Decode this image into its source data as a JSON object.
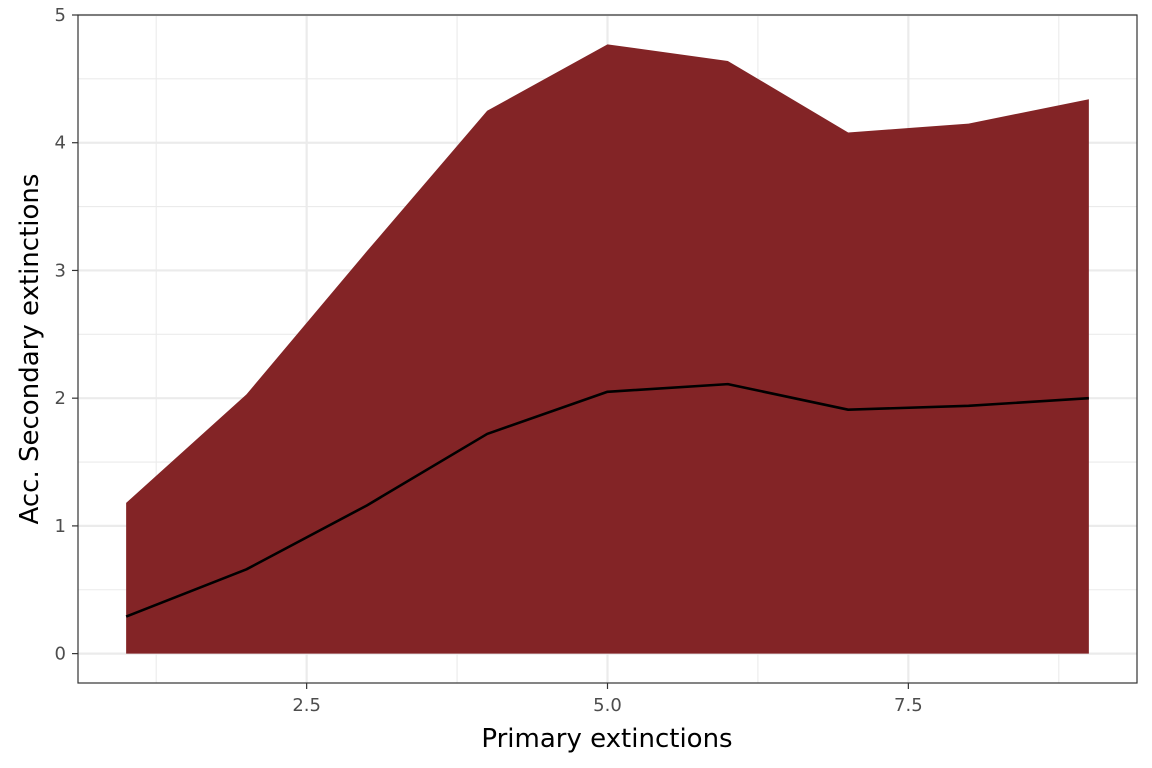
{
  "chart_data": {
    "type": "area",
    "xlabel": "Primary extinctions",
    "ylabel": "Acc. Secondary extinctions",
    "xlim": [
      0.6,
      9.4
    ],
    "ylim": [
      -0.23,
      5.0
    ],
    "x_ticks": [
      2.5,
      5.0,
      7.5
    ],
    "x_tick_labels": [
      "2.5",
      "5.0",
      "7.5"
    ],
    "y_ticks": [
      0,
      1,
      2,
      3,
      4,
      5
    ],
    "y_tick_labels": [
      "0",
      "1",
      "2",
      "3",
      "4",
      "5"
    ],
    "grid": true,
    "legend": "none",
    "x": [
      1,
      2,
      3,
      4,
      5,
      6,
      7,
      8,
      9
    ],
    "series": [
      {
        "kind": "area",
        "lower": [
          0,
          0,
          0,
          0,
          0,
          0,
          0,
          0,
          0
        ],
        "upper": [
          1.18,
          2.03,
          3.15,
          4.25,
          4.77,
          4.64,
          4.08,
          4.15,
          4.34
        ]
      },
      {
        "kind": "line",
        "values": [
          0.29,
          0.66,
          1.16,
          1.72,
          2.05,
          2.11,
          1.91,
          1.94,
          2.0
        ]
      }
    ],
    "colors": {
      "fill": "#832426",
      "line": "#000000",
      "grid": "#ebebeb",
      "panel_border": "#333333"
    }
  }
}
